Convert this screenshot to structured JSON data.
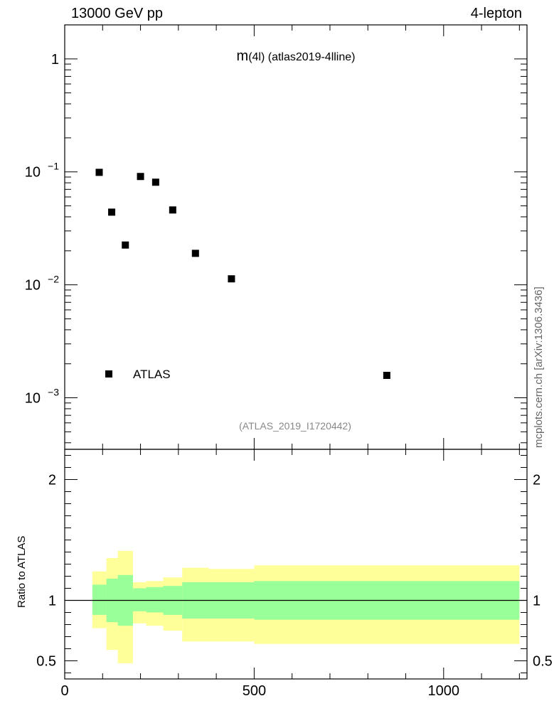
{
  "header": {
    "left": "13000 GeV pp",
    "right": "4-lepton",
    "side_label": "mcplots.cern.ch [arXiv:1306.3436]"
  },
  "chart_data": [
    {
      "type": "scatter",
      "title_main": "m",
      "title_rest": "(4l) (atlas2019-4lline)",
      "watermark": "(ATLAS_2019_I1720442)",
      "y_scale": "log",
      "xlim": [
        0,
        1220
      ],
      "ylim": [
        0.00035,
        2.0
      ],
      "y_tick_labels": [
        {
          "value": 1,
          "label": "1"
        },
        {
          "value": 0.1,
          "label": "10",
          "exp": "−1"
        },
        {
          "value": 0.01,
          "label": "10",
          "exp": "−2"
        },
        {
          "value": 0.001,
          "label": "10",
          "exp": "−3"
        }
      ],
      "legend": {
        "placement": "bottom-left",
        "entries": [
          {
            "name": "ATLAS",
            "marker": "square"
          }
        ]
      },
      "series": [
        {
          "name": "ATLAS",
          "points": [
            {
              "x": 91,
              "y": 0.099
            },
            {
              "x": 124,
              "y": 0.044
            },
            {
              "x": 160,
              "y": 0.0225
            },
            {
              "x": 200,
              "y": 0.091
            },
            {
              "x": 240,
              "y": 0.081
            },
            {
              "x": 285,
              "y": 0.046
            },
            {
              "x": 345,
              "y": 0.019
            },
            {
              "x": 440,
              "y": 0.0113
            },
            {
              "x": 850,
              "y": 0.00158
            }
          ]
        }
      ]
    },
    {
      "type": "area",
      "ylabel": "Ratio to ATLAS",
      "xlim": [
        0,
        1220
      ],
      "ylim": [
        0.35,
        2.25
      ],
      "x_tick_labels": [
        {
          "value": 0,
          "label": "0"
        },
        {
          "value": 500,
          "label": "500"
        },
        {
          "value": 1000,
          "label": "1000"
        }
      ],
      "y_tick_labels": [
        {
          "value": 0.5,
          "label": "0.5"
        },
        {
          "value": 1,
          "label": "1"
        },
        {
          "value": 2,
          "label": "2"
        }
      ],
      "reference_line": 1,
      "band_colors": {
        "outer": "#ffff99",
        "inner": "#99ff99"
      },
      "bins": [
        {
          "x0": 73,
          "x1": 110,
          "inner": [
            0.88,
            1.13
          ],
          "outer": [
            0.77,
            1.24
          ]
        },
        {
          "x0": 110,
          "x1": 140,
          "inner": [
            0.82,
            1.18
          ],
          "outer": [
            0.59,
            1.35
          ]
        },
        {
          "x0": 140,
          "x1": 180,
          "inner": [
            0.79,
            1.21
          ],
          "outer": [
            0.48,
            1.41
          ]
        },
        {
          "x0": 180,
          "x1": 215,
          "inner": [
            0.91,
            1.1
          ],
          "outer": [
            0.81,
            1.15
          ]
        },
        {
          "x0": 215,
          "x1": 260,
          "inner": [
            0.9,
            1.11
          ],
          "outer": [
            0.79,
            1.16
          ]
        },
        {
          "x0": 260,
          "x1": 310,
          "inner": [
            0.88,
            1.12
          ],
          "outer": [
            0.75,
            1.19
          ]
        },
        {
          "x0": 310,
          "x1": 380,
          "inner": [
            0.85,
            1.15
          ],
          "outer": [
            0.66,
            1.27
          ]
        },
        {
          "x0": 380,
          "x1": 500,
          "inner": [
            0.85,
            1.15
          ],
          "outer": [
            0.66,
            1.26
          ]
        },
        {
          "x0": 500,
          "x1": 1200,
          "inner": [
            0.84,
            1.16
          ],
          "outer": [
            0.64,
            1.29
          ]
        }
      ]
    }
  ]
}
